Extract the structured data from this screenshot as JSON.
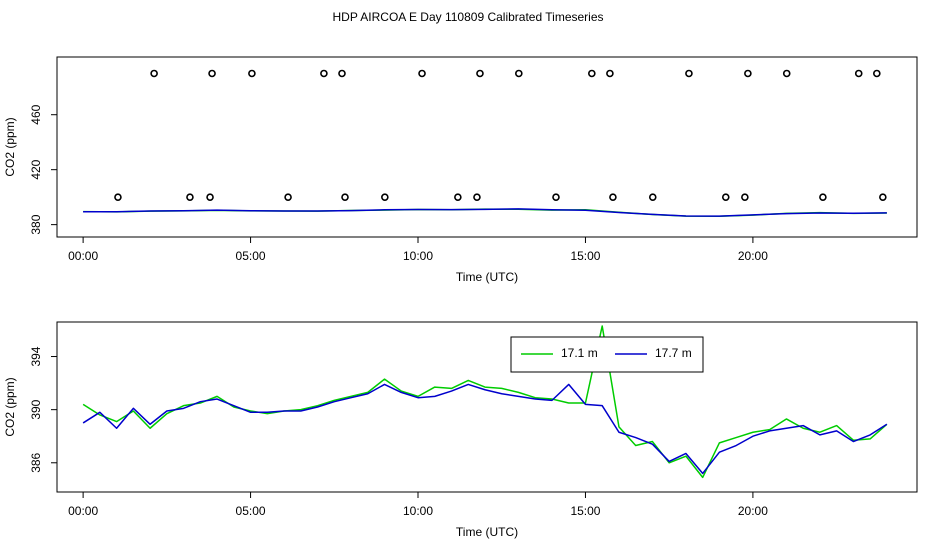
{
  "title": "HDP AIRCOA E  Day 110809  Calibrated Timeseries",
  "chart_data": [
    {
      "type": "line",
      "xlabel": "Time (UTC)",
      "ylabel": "CO2 (ppm)",
      "xlim": [
        -0.78,
        24.9
      ],
      "ylim": [
        371,
        502
      ],
      "xticks": [
        {
          "value": 0,
          "label": "00:00"
        },
        {
          "value": 5,
          "label": "05:00"
        },
        {
          "value": 10,
          "label": "10:00"
        },
        {
          "value": 15,
          "label": "15:00"
        },
        {
          "value": 20,
          "label": "20:00"
        }
      ],
      "yticks": [
        380,
        420,
        460
      ],
      "x": [
        0,
        1,
        2,
        3,
        4,
        5,
        6,
        7,
        8,
        9,
        10,
        11,
        12,
        13,
        14,
        15,
        16,
        17,
        18,
        19,
        20,
        21,
        22,
        23,
        24
      ],
      "series": [
        {
          "color": "#00cc00",
          "values": [
            389.5,
            389.3,
            389.8,
            390.0,
            390.4,
            390.0,
            389.9,
            389.8,
            390.3,
            390.6,
            391.0,
            390.8,
            391.3,
            391.2,
            390.6,
            390.8,
            389.0,
            387.4,
            386.2,
            386.1,
            386.9,
            388.2,
            388.7,
            388.2,
            388.5
          ]
        },
        {
          "color": "#0000cc",
          "values": [
            389.4,
            389.4,
            389.9,
            390.1,
            390.6,
            390.1,
            389.9,
            389.9,
            390.2,
            390.8,
            391.0,
            390.9,
            391.1,
            391.5,
            390.8,
            390.5,
            388.8,
            387.5,
            386.3,
            386.2,
            387.1,
            388.0,
            388.5,
            388.3,
            388.6
          ]
        },
        {
          "color": "#000000",
          "marker": "circle",
          "x": [
            2.12,
            3.85,
            5.04,
            7.19,
            7.73,
            10.12,
            11.85,
            13.01,
            15.19,
            15.73,
            18.09,
            19.85,
            21.01,
            23.16,
            23.7
          ],
          "values": [
            490,
            490,
            490,
            490,
            490,
            490,
            490,
            490,
            490,
            490,
            490,
            490,
            490,
            490,
            490
          ]
        },
        {
          "color": "#000000",
          "marker": "circle",
          "x": [
            1.04,
            3.19,
            3.79,
            6.12,
            7.82,
            9.01,
            11.19,
            11.76,
            14.12,
            15.82,
            17.01,
            19.19,
            19.76,
            22.09,
            23.88
          ],
          "values": [
            400,
            400,
            400,
            400,
            400,
            400,
            400,
            400,
            400,
            400,
            400,
            400,
            400,
            400,
            400
          ]
        }
      ]
    },
    {
      "type": "line",
      "xlabel": "Time (UTC)",
      "ylabel": "CO2 (ppm)",
      "xlim": [
        -0.78,
        24.9
      ],
      "ylim": [
        383.8,
        396.6
      ],
      "xticks": [
        {
          "value": 0,
          "label": "00:00"
        },
        {
          "value": 5,
          "label": "05:00"
        },
        {
          "value": 10,
          "label": "10:00"
        },
        {
          "value": 15,
          "label": "15:00"
        },
        {
          "value": 20,
          "label": "20:00"
        }
      ],
      "yticks": [
        386,
        390,
        394
      ],
      "legend": "top",
      "x": [
        0,
        0.5,
        1,
        1.5,
        2,
        2.5,
        3,
        3.5,
        4,
        4.5,
        5,
        5.5,
        6,
        6.5,
        7,
        7.5,
        8,
        8.5,
        9,
        9.5,
        10,
        10.5,
        11,
        11.5,
        12,
        12.5,
        13,
        13.5,
        14,
        14.5,
        15,
        15.5,
        16,
        16.5,
        17,
        17.5,
        18,
        18.5,
        19,
        19.5,
        20,
        20.5,
        21,
        21.5,
        22,
        22.5,
        23,
        23.5,
        24
      ],
      "series": [
        {
          "name": "17.1 m",
          "color": "#00cc00",
          "values": [
            390.4,
            389.6,
            389.1,
            389.9,
            388.6,
            389.7,
            390.3,
            390.5,
            391.0,
            390.2,
            389.9,
            389.7,
            389.9,
            390.0,
            390.3,
            390.7,
            391.0,
            391.3,
            392.3,
            391.4,
            391.0,
            391.7,
            391.6,
            392.2,
            391.7,
            391.6,
            391.3,
            390.9,
            390.8,
            390.5,
            390.5,
            396.3,
            388.7,
            387.3,
            387.6,
            386.0,
            386.5,
            384.9,
            387.5,
            387.9,
            388.3,
            388.5,
            389.3,
            388.6,
            388.3,
            388.8,
            387.7,
            387.8,
            388.9
          ]
        },
        {
          "name": "17.7 m",
          "color": "#0000cc",
          "values": [
            389.0,
            389.8,
            388.6,
            390.1,
            388.9,
            389.9,
            390.1,
            390.6,
            390.8,
            390.3,
            389.8,
            389.8,
            389.9,
            389.9,
            390.2,
            390.6,
            390.9,
            391.2,
            391.9,
            391.3,
            390.9,
            391.0,
            391.4,
            391.9,
            391.5,
            391.2,
            391.0,
            390.8,
            390.7,
            391.9,
            390.4,
            390.3,
            388.3,
            387.9,
            387.4,
            386.1,
            386.7,
            385.2,
            386.8,
            387.3,
            388.0,
            388.4,
            388.6,
            388.8,
            388.1,
            388.4,
            387.6,
            388.1,
            388.9
          ]
        }
      ]
    }
  ]
}
